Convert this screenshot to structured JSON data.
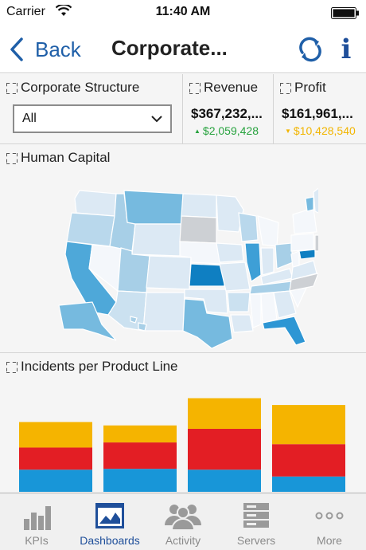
{
  "status_bar": {
    "carrier": "Carrier",
    "time": "11:40 AM"
  },
  "nav": {
    "back_label": "Back",
    "title": "Corporate..."
  },
  "panels": {
    "structure": {
      "title": "Corporate Structure",
      "selected": "All"
    },
    "revenue": {
      "title": "Revenue",
      "value": "$367,232,...",
      "delta": "$2,059,428",
      "delta_direction": "up"
    },
    "profit": {
      "title": "Profit",
      "value": "$161,961,...",
      "delta": "$10,428,540",
      "delta_direction": "down"
    },
    "human_capital": {
      "title": "Human Capital"
    },
    "incidents": {
      "title": "Incidents per Product Line"
    }
  },
  "colors": {
    "accent": "#1f5fa8",
    "up": "#27a23e",
    "down": "#f2b500",
    "bar_top": "#f5b400",
    "bar_mid": "#e31e24",
    "bar_bottom": "#1896d8"
  },
  "chart_data": {
    "type": "bar",
    "stacked": true,
    "categories": [
      "",
      "",
      "",
      ""
    ],
    "series": [
      {
        "values": [
          26,
          27,
          26,
          18
        ]
      },
      {
        "values": [
          26,
          31,
          48,
          38
        ]
      },
      {
        "values": [
          30,
          20,
          36,
          46
        ]
      }
    ],
    "ylim": [
      0,
      118
    ],
    "grid": false
  },
  "tabs": [
    {
      "label": "KPIs",
      "icon": "bar-chart-icon",
      "active": false
    },
    {
      "label": "Dashboards",
      "icon": "dashboard-icon",
      "active": true
    },
    {
      "label": "Activity",
      "icon": "people-icon",
      "active": false
    },
    {
      "label": "Servers",
      "icon": "servers-icon",
      "active": false
    },
    {
      "label": "More",
      "icon": "more-dots-icon",
      "active": false
    }
  ]
}
